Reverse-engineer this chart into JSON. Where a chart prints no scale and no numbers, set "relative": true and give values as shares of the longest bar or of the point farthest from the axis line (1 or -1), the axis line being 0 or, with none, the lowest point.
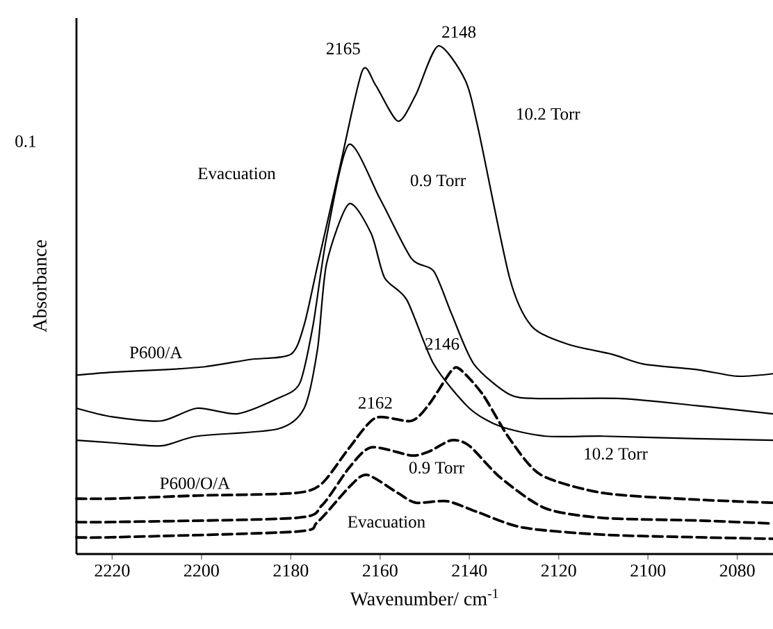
{
  "chart_data": {
    "type": "line",
    "xlabel": "Wavenumber/ cm$^{-1}$",
    "ylabel": "Absorbance",
    "relative": true,
    "xlim": [
      2228,
      2072
    ],
    "xticks": [
      2220,
      2200,
      2180,
      2160,
      2140,
      2120,
      2100,
      2080
    ],
    "grid": false,
    "marker": "none",
    "series": [
      {
        "color": "#000000",
        "line_style": "solid",
        "x": [
          2228,
          2220,
          2208,
          2199,
          2189,
          2180,
          2177,
          2174,
          2169,
          2164,
          2161,
          2156,
          2152,
          2147,
          2141,
          2138,
          2131,
          2126,
          2118,
          2108,
          2101,
          2089,
          2080,
          2072
        ],
        "values": [
          0.352,
          0.358,
          0.363,
          0.369,
          0.383,
          0.393,
          0.451,
          0.568,
          0.762,
          0.951,
          0.923,
          0.852,
          0.904,
          1.0,
          0.934,
          0.836,
          0.544,
          0.448,
          0.413,
          0.393,
          0.374,
          0.363,
          0.35,
          0.355
        ]
      },
      {
        "color": "#000000",
        "line_style": "solid",
        "x": [
          2228,
          2220,
          2209,
          2201,
          2192,
          2183,
          2178,
          2175,
          2172,
          2167,
          2160,
          2153,
          2148,
          2144,
          2139,
          2131,
          2124,
          2106,
          2089,
          2072
        ],
        "values": [
          0.287,
          0.27,
          0.262,
          0.287,
          0.276,
          0.306,
          0.336,
          0.451,
          0.623,
          0.806,
          0.699,
          0.582,
          0.557,
          0.473,
          0.374,
          0.314,
          0.306,
          0.306,
          0.292,
          0.276
        ]
      },
      {
        "color": "#000000",
        "line_style": "solid",
        "x": [
          2228,
          2220,
          2209,
          2201,
          2183,
          2177,
          2174,
          2172,
          2167,
          2162,
          2159,
          2154,
          2148,
          2140,
          2133,
          2123,
          2110,
          2089,
          2072
        ],
        "values": [
          0.224,
          0.219,
          0.213,
          0.232,
          0.246,
          0.287,
          0.404,
          0.571,
          0.689,
          0.631,
          0.544,
          0.5,
          0.374,
          0.287,
          0.251,
          0.232,
          0.232,
          0.227,
          0.224
        ]
      },
      {
        "color": "#000000",
        "line_style": "dashed",
        "x": [
          2228,
          2220,
          2201,
          2179,
          2173,
          2167,
          2161,
          2153,
          2149,
          2144,
          2142,
          2137,
          2131,
          2124,
          2110,
          2089,
          2072
        ],
        "values": [
          0.109,
          0.109,
          0.115,
          0.12,
          0.139,
          0.208,
          0.268,
          0.262,
          0.295,
          0.361,
          0.363,
          0.314,
          0.227,
          0.156,
          0.12,
          0.107,
          0.101
        ]
      },
      {
        "color": "#000000",
        "line_style": "dashed",
        "x": [
          2228,
          2220,
          2179,
          2173,
          2167,
          2162,
          2153,
          2149,
          2144,
          2140,
          2133,
          2123,
          2110,
          2089,
          2072
        ],
        "values": [
          0.063,
          0.063,
          0.071,
          0.096,
          0.169,
          0.21,
          0.194,
          0.202,
          0.224,
          0.213,
          0.15,
          0.09,
          0.071,
          0.066,
          0.06
        ]
      },
      {
        "color": "#000000",
        "line_style": "dashed",
        "x": [
          2228,
          2220,
          2179,
          2174,
          2167,
          2163,
          2156,
          2152,
          2145,
          2138,
          2128,
          2110,
          2089,
          2072
        ],
        "values": [
          0.033,
          0.033,
          0.044,
          0.063,
          0.131,
          0.156,
          0.12,
          0.101,
          0.104,
          0.082,
          0.052,
          0.038,
          0.033,
          0.03
        ]
      }
    ],
    "annotations": [
      "0.1",
      "2165",
      "2148",
      "10.2 Torr",
      "0.9 Torr",
      "Evacuation",
      "P600/A",
      "2146",
      "2162",
      "10.2 Torr",
      "0.9 Torr",
      "P600/O/A",
      "Evacuation"
    ]
  }
}
